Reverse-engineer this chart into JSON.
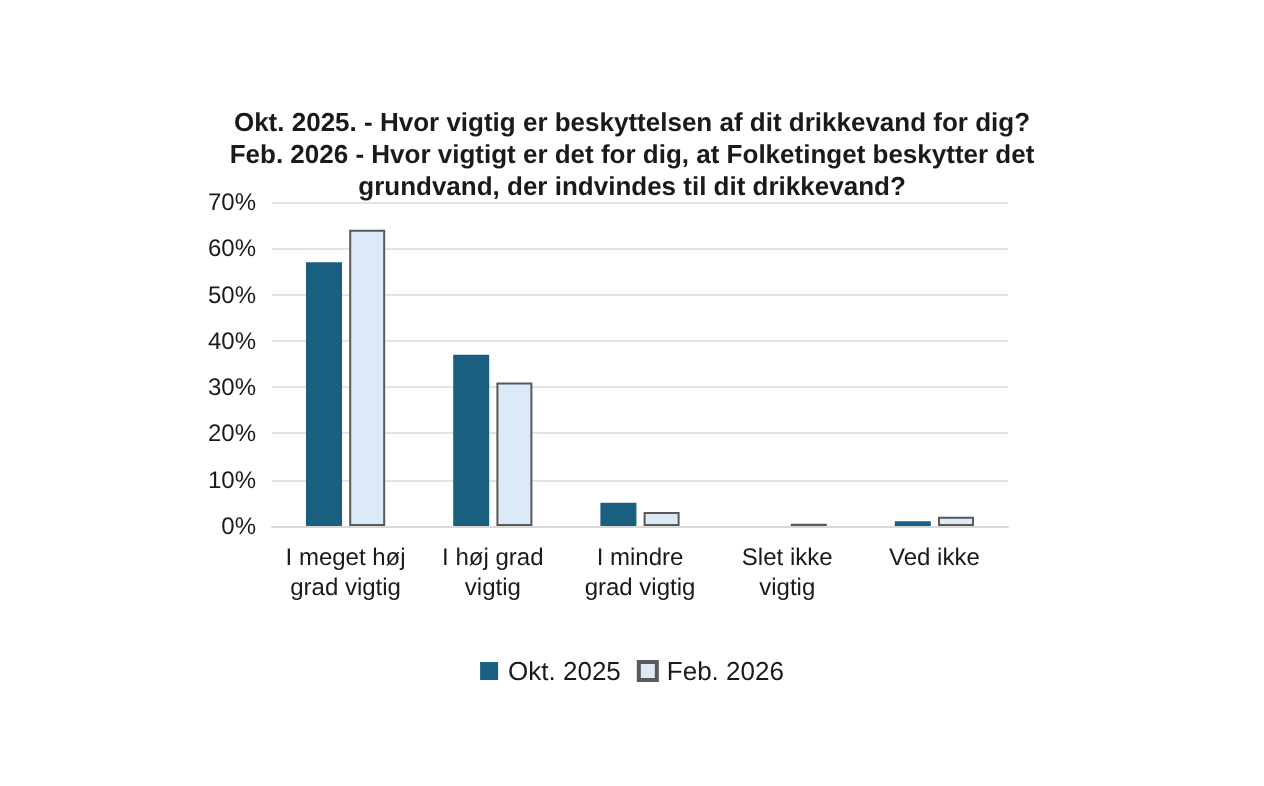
{
  "chart_data": {
    "type": "bar",
    "title": "Okt. 2025. - Hvor vigtig er beskyttelsen af dit drikkevand for dig?\nFeb. 2026 - Hvor vigtigt er det for dig, at Folketinget beskytter det\ngrundvand, der indvindes til dit drikkevand?",
    "categories": [
      "I meget høj\ngrad vigtig",
      "I høj grad\nvigtig",
      "I mindre\ngrad vigtig",
      "Slet ikke\nvigtig",
      "Ved ikke"
    ],
    "series": [
      {
        "name": "Okt. 2025",
        "color": "#1a5e80",
        "values": [
          57,
          37,
          5,
          0,
          1
        ]
      },
      {
        "name": "Feb. 2026",
        "color": "#dce9f6",
        "values": [
          64,
          31,
          3,
          0.5,
          2
        ]
      }
    ],
    "ylim": [
      0,
      70
    ],
    "yticks": [
      {
        "value": 0,
        "label": "0%"
      },
      {
        "value": 10,
        "label": "10%"
      },
      {
        "value": 20,
        "label": "20%"
      },
      {
        "value": 30,
        "label": "30%"
      },
      {
        "value": 40,
        "label": "40%"
      },
      {
        "value": 50,
        "label": "50%"
      },
      {
        "value": 60,
        "label": "60%"
      },
      {
        "value": 70,
        "label": "70%"
      }
    ],
    "grid": "y",
    "legend": "bottom"
  }
}
